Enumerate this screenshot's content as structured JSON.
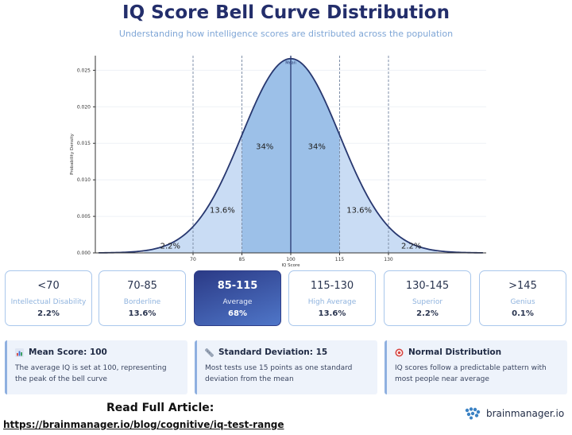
{
  "header": {
    "title": "IQ Score Bell Curve Distribution",
    "subtitle": "Understanding how intelligence scores are distributed across the population"
  },
  "chart_data": {
    "type": "area",
    "title": "",
    "xlabel": "IQ Score",
    "ylabel": "Probability Density",
    "distribution": {
      "mean": 100,
      "sd": 15
    },
    "xlim": [
      40,
      160
    ],
    "ylim": [
      0,
      0.027
    ],
    "x_ticks": [
      70,
      85,
      100,
      115,
      130
    ],
    "y_ticks": [
      0.0,
      0.005,
      0.01,
      0.015,
      0.02,
      0.025
    ],
    "y_tick_labels": [
      "0.000",
      "0.005",
      "0.010",
      "0.015",
      "0.020",
      "0.025"
    ],
    "mean_label": "Mean",
    "regions": [
      {
        "from": 55,
        "to": 70,
        "percent": "2.2%",
        "label_x": 63,
        "label_y": 0.0006,
        "shade": "light"
      },
      {
        "from": 70,
        "to": 85,
        "percent": "13.6%",
        "label_x": 79,
        "label_y": 0.0055,
        "shade": "light"
      },
      {
        "from": 85,
        "to": 100,
        "percent": "34%",
        "label_x": 92,
        "label_y": 0.0142,
        "shade": "mid"
      },
      {
        "from": 100,
        "to": 115,
        "percent": "34%",
        "label_x": 108,
        "label_y": 0.0142,
        "shade": "mid"
      },
      {
        "from": 115,
        "to": 130,
        "percent": "13.6%",
        "label_x": 121,
        "label_y": 0.0055,
        "shade": "light"
      },
      {
        "from": 130,
        "to": 145,
        "percent": "2.2%",
        "label_x": 137,
        "label_y": 0.0006,
        "shade": "light"
      }
    ],
    "grid": true,
    "colors": {
      "curve": "#27376f",
      "mid_fill": "#9cc0e8",
      "light_fill": "#c9dcf4",
      "sd_line": "#7f8fa8",
      "mean_line": "#27376f"
    }
  },
  "categories": [
    {
      "range": "<70",
      "label": "Intellectual Disability",
      "percent": "2.2%"
    },
    {
      "range": "70-85",
      "label": "Borderline",
      "percent": "13.6%"
    },
    {
      "range": "85-115",
      "label": "Average",
      "percent": "68%",
      "highlight": true
    },
    {
      "range": "115-130",
      "label": "High Average",
      "percent": "13.6%"
    },
    {
      "range": "130-145",
      "label": "Superior",
      "percent": "2.2%"
    },
    {
      "range": ">145",
      "label": "Genius",
      "percent": "0.1%"
    }
  ],
  "info_cards": [
    {
      "icon": "bar-chart-icon",
      "title": "Mean Score: 100",
      "text": "The average IQ is set at 100, representing the peak of the bell curve"
    },
    {
      "icon": "ruler-icon",
      "title": "Standard Deviation: 15",
      "text": "Most tests use 15 points as one standard deviation from the mean"
    },
    {
      "icon": "target-icon",
      "title": "Normal Distribution",
      "text": "IQ scores follow a predictable pattern with most people near average"
    }
  ],
  "footer": {
    "read_title": "Read Full Article:",
    "link": "https://brainmanager.io/blog/cognitive/iq-test-range",
    "brand": "brainmanager.io",
    "brand_icon": "brain-icon"
  }
}
